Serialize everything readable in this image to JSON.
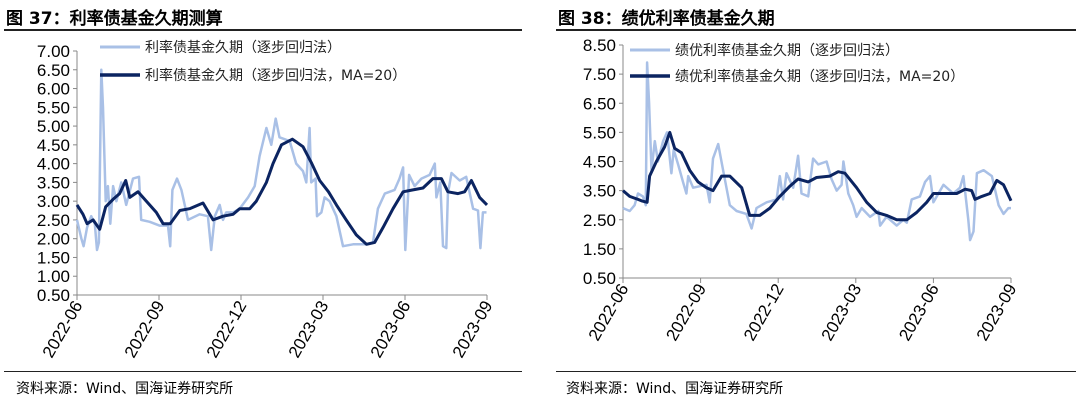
{
  "colors": {
    "raw": "#a9c0e6",
    "ma": "#0b2461",
    "axis": "#888888"
  },
  "chart_data": [
    {
      "type": "line",
      "title": "图 37：利率债基金久期测算",
      "source": "资料来源：Wind、国海证券研究所",
      "x_unit": "months since 2022-06",
      "xlim": [
        0,
        15
      ],
      "x_ticks": [
        {
          "v": 0,
          "label": "2022-06"
        },
        {
          "v": 3,
          "label": "2022-09"
        },
        {
          "v": 6,
          "label": "2022-12"
        },
        {
          "v": 9,
          "label": "2023-03"
        },
        {
          "v": 12,
          "label": "2023-06"
        },
        {
          "v": 15,
          "label": "2023-09"
        }
      ],
      "ylim": [
        0.5,
        7.0
      ],
      "y_ticks": [
        "0.50",
        "1.00",
        "1.50",
        "2.00",
        "2.50",
        "3.00",
        "3.50",
        "4.00",
        "4.50",
        "5.00",
        "5.50",
        "6.00",
        "6.50",
        "7.00"
      ],
      "legend_position": "top-left",
      "series": [
        {
          "name": "利率债基金久期（逐步回归法）",
          "style": "raw",
          "points": [
            [
              0,
              2.5
            ],
            [
              0.16,
              2.0
            ],
            [
              0.24,
              1.8
            ],
            [
              0.37,
              2.3
            ],
            [
              0.52,
              2.6
            ],
            [
              0.65,
              2.4
            ],
            [
              0.73,
              1.7
            ],
            [
              0.8,
              1.9
            ],
            [
              0.89,
              6.5
            ],
            [
              0.95,
              5.5
            ],
            [
              1.05,
              3.0
            ],
            [
              1.13,
              3.4
            ],
            [
              1.22,
              2.4
            ],
            [
              1.32,
              3.4
            ],
            [
              1.44,
              3.0
            ],
            [
              1.62,
              3.5
            ],
            [
              1.8,
              2.9
            ],
            [
              2.05,
              3.6
            ],
            [
              2.27,
              3.65
            ],
            [
              2.35,
              2.5
            ],
            [
              2.66,
              2.45
            ],
            [
              3.02,
              2.35
            ],
            [
              3.33,
              2.35
            ],
            [
              3.41,
              1.8
            ],
            [
              3.49,
              3.3
            ],
            [
              3.66,
              3.6
            ],
            [
              3.82,
              3.3
            ],
            [
              4.06,
              2.5
            ],
            [
              4.49,
              2.65
            ],
            [
              4.79,
              2.6
            ],
            [
              4.91,
              1.7
            ],
            [
              5.04,
              2.6
            ],
            [
              5.22,
              2.9
            ],
            [
              5.34,
              2.5
            ],
            [
              5.46,
              2.7
            ],
            [
              5.71,
              2.7
            ],
            [
              5.95,
              2.8
            ],
            [
              6.26,
              3.1
            ],
            [
              6.5,
              3.4
            ],
            [
              6.68,
              4.2
            ],
            [
              6.93,
              4.95
            ],
            [
              7.11,
              4.5
            ],
            [
              7.27,
              5.2
            ],
            [
              7.41,
              4.7
            ],
            [
              7.78,
              4.6
            ],
            [
              8.02,
              4.0
            ],
            [
              8.27,
              3.8
            ],
            [
              8.39,
              3.5
            ],
            [
              8.51,
              4.95
            ],
            [
              8.57,
              3.5
            ],
            [
              8.73,
              3.6
            ],
            [
              8.78,
              2.6
            ],
            [
              8.94,
              2.7
            ],
            [
              9.06,
              3.1
            ],
            [
              9.24,
              3.0
            ],
            [
              9.49,
              2.6
            ],
            [
              9.73,
              1.8
            ],
            [
              10.1,
              1.85
            ],
            [
              10.59,
              1.85
            ],
            [
              10.83,
              1.9
            ],
            [
              11.01,
              2.8
            ],
            [
              11.26,
              3.2
            ],
            [
              11.62,
              3.3
            ],
            [
              11.8,
              3.6
            ],
            [
              11.93,
              3.9
            ],
            [
              12.01,
              1.7
            ],
            [
              12.15,
              3.7
            ],
            [
              12.35,
              3.4
            ],
            [
              12.6,
              3.6
            ],
            [
              12.9,
              3.7
            ],
            [
              13.09,
              4.0
            ],
            [
              13.15,
              3.1
            ],
            [
              13.29,
              3.5
            ],
            [
              13.39,
              1.8
            ],
            [
              13.51,
              1.75
            ],
            [
              13.57,
              3.2
            ],
            [
              13.7,
              3.75
            ],
            [
              14.0,
              3.55
            ],
            [
              14.24,
              3.65
            ],
            [
              14.49,
              2.8
            ],
            [
              14.67,
              2.75
            ],
            [
              14.76,
              1.75
            ],
            [
              14.85,
              2.7
            ],
            [
              14.98,
              2.7
            ]
          ]
        },
        {
          "name": "利率债基金久期（逐步回归法，MA=20）",
          "style": "ma",
          "points": [
            [
              0,
              2.9
            ],
            [
              0.22,
              2.65
            ],
            [
              0.37,
              2.4
            ],
            [
              0.59,
              2.5
            ],
            [
              0.83,
              2.25
            ],
            [
              1.05,
              2.85
            ],
            [
              1.32,
              3.05
            ],
            [
              1.56,
              3.2
            ],
            [
              1.78,
              3.55
            ],
            [
              1.93,
              3.1
            ],
            [
              2.23,
              3.25
            ],
            [
              2.54,
              3.0
            ],
            [
              2.9,
              2.7
            ],
            [
              3.15,
              2.4
            ],
            [
              3.41,
              2.4
            ],
            [
              3.76,
              2.75
            ],
            [
              4.12,
              2.8
            ],
            [
              4.61,
              2.95
            ],
            [
              4.98,
              2.5
            ],
            [
              5.34,
              2.6
            ],
            [
              5.71,
              2.65
            ],
            [
              5.95,
              2.8
            ],
            [
              6.32,
              2.8
            ],
            [
              6.56,
              3.0
            ],
            [
              6.93,
              3.5
            ],
            [
              7.17,
              4.0
            ],
            [
              7.48,
              4.5
            ],
            [
              7.88,
              4.65
            ],
            [
              8.27,
              4.45
            ],
            [
              8.59,
              4.0
            ],
            [
              8.88,
              3.55
            ],
            [
              9.2,
              3.25
            ],
            [
              9.49,
              2.9
            ],
            [
              9.85,
              2.5
            ],
            [
              10.22,
              2.1
            ],
            [
              10.59,
              1.85
            ],
            [
              10.89,
              1.9
            ],
            [
              11.2,
              2.3
            ],
            [
              11.56,
              2.8
            ],
            [
              11.93,
              3.25
            ],
            [
              12.29,
              3.3
            ],
            [
              12.66,
              3.35
            ],
            [
              13.02,
              3.6
            ],
            [
              13.33,
              3.6
            ],
            [
              13.57,
              3.25
            ],
            [
              13.94,
              3.2
            ],
            [
              14.18,
              3.25
            ],
            [
              14.43,
              3.55
            ],
            [
              14.73,
              3.1
            ],
            [
              15,
              2.9
            ]
          ]
        }
      ]
    },
    {
      "type": "line",
      "title": "图 38：绩优利率债基金久期",
      "source": "资料来源：Wind、国海证券研究所",
      "x_unit": "months since 2022-06",
      "xlim": [
        0,
        15
      ],
      "x_ticks": [
        {
          "v": 0,
          "label": "2022-06"
        },
        {
          "v": 3,
          "label": "2022-09"
        },
        {
          "v": 6,
          "label": "2022-12"
        },
        {
          "v": 9,
          "label": "2023-03"
        },
        {
          "v": 12,
          "label": "2023-06"
        },
        {
          "v": 15,
          "label": "2023-09"
        }
      ],
      "ylim": [
        0.5,
        8.5
      ],
      "y_ticks": [
        "0.50",
        "1.50",
        "2.50",
        "3.50",
        "4.50",
        "5.50",
        "6.50",
        "7.50",
        "8.50"
      ],
      "legend_position": "top-left",
      "series": [
        {
          "name": "绩优利率债基金久期（逐步回归法）",
          "style": "raw",
          "points": [
            [
              0,
              2.9
            ],
            [
              0.26,
              2.8
            ],
            [
              0.45,
              3.0
            ],
            [
              0.58,
              3.4
            ],
            [
              0.77,
              3.3
            ],
            [
              0.88,
              3.0
            ],
            [
              0.93,
              7.9
            ],
            [
              1.01,
              6.5
            ],
            [
              1.1,
              4.2
            ],
            [
              1.23,
              5.2
            ],
            [
              1.35,
              4.5
            ],
            [
              1.55,
              5.2
            ],
            [
              1.7,
              5.5
            ],
            [
              1.87,
              4.1
            ],
            [
              1.96,
              4.9
            ],
            [
              2.13,
              4.4
            ],
            [
              2.32,
              3.8
            ],
            [
              2.45,
              3.4
            ],
            [
              2.52,
              4.0
            ],
            [
              2.71,
              3.6
            ],
            [
              3.23,
              3.7
            ],
            [
              3.35,
              3.1
            ],
            [
              3.48,
              4.6
            ],
            [
              3.68,
              5.1
            ],
            [
              3.87,
              4.2
            ],
            [
              4.13,
              3.0
            ],
            [
              4.39,
              2.8
            ],
            [
              4.77,
              2.7
            ],
            [
              4.97,
              2.2
            ],
            [
              5.16,
              2.9
            ],
            [
              5.55,
              3.1
            ],
            [
              5.94,
              3.2
            ],
            [
              6.06,
              4.0
            ],
            [
              6.19,
              3.2
            ],
            [
              6.32,
              4.1
            ],
            [
              6.58,
              3.6
            ],
            [
              6.77,
              4.7
            ],
            [
              6.9,
              3.4
            ],
            [
              7.16,
              3.3
            ],
            [
              7.35,
              4.6
            ],
            [
              7.55,
              4.4
            ],
            [
              7.87,
              4.5
            ],
            [
              8.06,
              3.9
            ],
            [
              8.26,
              3.5
            ],
            [
              8.45,
              3.7
            ],
            [
              8.52,
              4.5
            ],
            [
              8.71,
              3.4
            ],
            [
              8.9,
              3.0
            ],
            [
              9.03,
              2.6
            ],
            [
              9.23,
              2.9
            ],
            [
              9.55,
              2.6
            ],
            [
              9.87,
              2.8
            ],
            [
              9.94,
              2.3
            ],
            [
              10.19,
              2.6
            ],
            [
              10.58,
              2.3
            ],
            [
              10.84,
              2.5
            ],
            [
              10.97,
              2.4
            ],
            [
              11.16,
              3.2
            ],
            [
              11.48,
              3.3
            ],
            [
              11.68,
              3.8
            ],
            [
              11.87,
              4.0
            ],
            [
              12.0,
              3.1
            ],
            [
              12.39,
              3.7
            ],
            [
              12.77,
              3.4
            ],
            [
              13.03,
              3.6
            ],
            [
              13.16,
              4.0
            ],
            [
              13.35,
              2.5
            ],
            [
              13.42,
              1.8
            ],
            [
              13.55,
              2.1
            ],
            [
              13.68,
              4.1
            ],
            [
              13.94,
              4.2
            ],
            [
              14.26,
              4.0
            ],
            [
              14.52,
              3.0
            ],
            [
              14.71,
              2.7
            ],
            [
              14.9,
              2.9
            ],
            [
              15,
              2.9
            ]
          ]
        },
        {
          "name": "绩优利率债基金久期（逐步回归法，MA=20）",
          "style": "ma",
          "points": [
            [
              0,
              3.5
            ],
            [
              0.26,
              3.3
            ],
            [
              0.58,
              3.2
            ],
            [
              0.71,
              3.15
            ],
            [
              0.93,
              3.1
            ],
            [
              1.03,
              4.0
            ],
            [
              1.29,
              4.5
            ],
            [
              1.61,
              5.0
            ],
            [
              1.81,
              5.5
            ],
            [
              2.0,
              4.95
            ],
            [
              2.26,
              4.8
            ],
            [
              2.58,
              4.2
            ],
            [
              2.9,
              3.8
            ],
            [
              3.23,
              3.6
            ],
            [
              3.48,
              3.5
            ],
            [
              3.81,
              4.0
            ],
            [
              4.13,
              4.0
            ],
            [
              4.59,
              3.6
            ],
            [
              4.9,
              2.65
            ],
            [
              5.29,
              2.65
            ],
            [
              5.68,
              2.9
            ],
            [
              6.06,
              3.3
            ],
            [
              6.45,
              3.65
            ],
            [
              6.77,
              3.9
            ],
            [
              7.16,
              3.8
            ],
            [
              7.48,
              3.95
            ],
            [
              8.0,
              4.0
            ],
            [
              8.32,
              4.15
            ],
            [
              8.58,
              4.1
            ],
            [
              9.03,
              3.6
            ],
            [
              9.42,
              3.1
            ],
            [
              9.81,
              2.75
            ],
            [
              10.19,
              2.65
            ],
            [
              10.58,
              2.5
            ],
            [
              10.97,
              2.5
            ],
            [
              11.35,
              2.75
            ],
            [
              11.74,
              3.1
            ],
            [
              12.0,
              3.4
            ],
            [
              12.39,
              3.4
            ],
            [
              12.9,
              3.4
            ],
            [
              13.23,
              3.55
            ],
            [
              13.48,
              3.5
            ],
            [
              13.61,
              3.2
            ],
            [
              13.87,
              3.3
            ],
            [
              14.19,
              3.4
            ],
            [
              14.45,
              3.85
            ],
            [
              14.71,
              3.7
            ],
            [
              15,
              3.15
            ]
          ]
        }
      ]
    }
  ]
}
